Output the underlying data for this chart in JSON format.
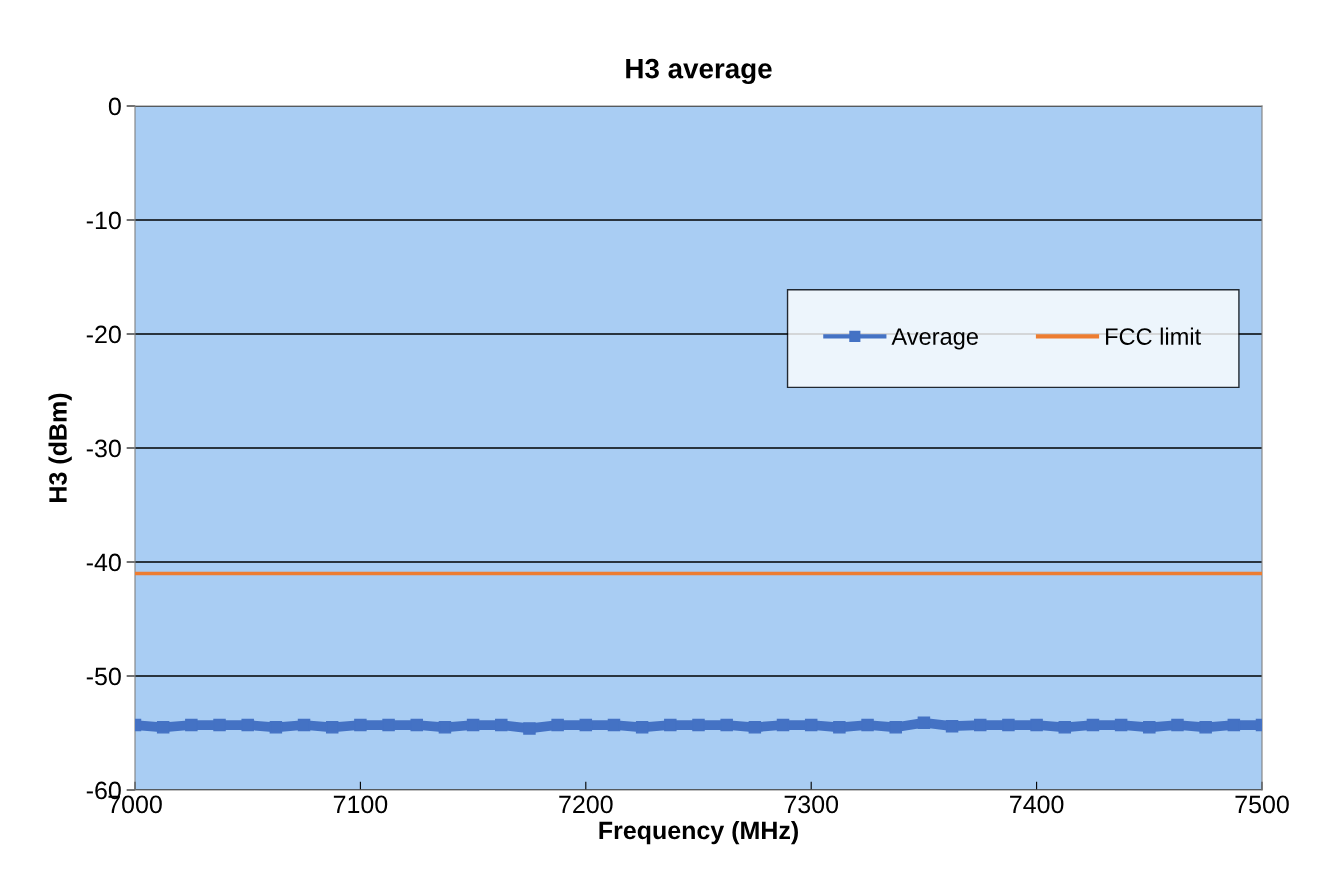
{
  "chart_data": {
    "type": "line",
    "title": "H3 average",
    "xlabel": "Frequency (MHz)",
    "ylabel": "H3 (dBm)",
    "xlim": [
      7000,
      7500
    ],
    "xticks": [
      7000,
      7100,
      7200,
      7300,
      7400,
      7500
    ],
    "ylim": [
      -60,
      0
    ],
    "yticks": [
      -60,
      -50,
      -40,
      -30,
      -20,
      -10,
      0
    ],
    "grid": "y",
    "legend": "right",
    "line_style": "solid",
    "series": [
      {
        "name": "Average",
        "color": "#4472c4",
        "marker": "square",
        "x": [
          7000,
          7012.5,
          7025,
          7037.5,
          7050,
          7062.5,
          7075,
          7087.5,
          7100,
          7112.5,
          7125,
          7137.5,
          7150,
          7162.5,
          7175,
          7187.5,
          7200,
          7212.5,
          7225,
          7237.5,
          7250,
          7262.5,
          7275,
          7287.5,
          7300,
          7312.5,
          7325,
          7337.5,
          7350,
          7362.5,
          7375,
          7387.5,
          7400,
          7412.5,
          7425,
          7437.5,
          7450,
          7462.5,
          7475,
          7487.5,
          7500
        ],
        "values": [
          -54.3,
          -54.5,
          -54.3,
          -54.3,
          -54.3,
          -54.5,
          -54.3,
          -54.5,
          -54.3,
          -54.3,
          -54.3,
          -54.5,
          -54.3,
          -54.3,
          -54.6,
          -54.3,
          -54.3,
          -54.3,
          -54.5,
          -54.3,
          -54.3,
          -54.3,
          -54.5,
          -54.3,
          -54.3,
          -54.5,
          -54.3,
          -54.5,
          -54.1,
          -54.4,
          -54.3,
          -54.3,
          -54.3,
          -54.5,
          -54.3,
          -54.3,
          -54.5,
          -54.3,
          -54.5,
          -54.3,
          -54.3
        ]
      },
      {
        "name": "FCC limit",
        "color": "#ed7d31",
        "marker": "none",
        "x": [
          7000,
          7500
        ],
        "values": [
          -41,
          -41
        ]
      }
    ]
  }
}
